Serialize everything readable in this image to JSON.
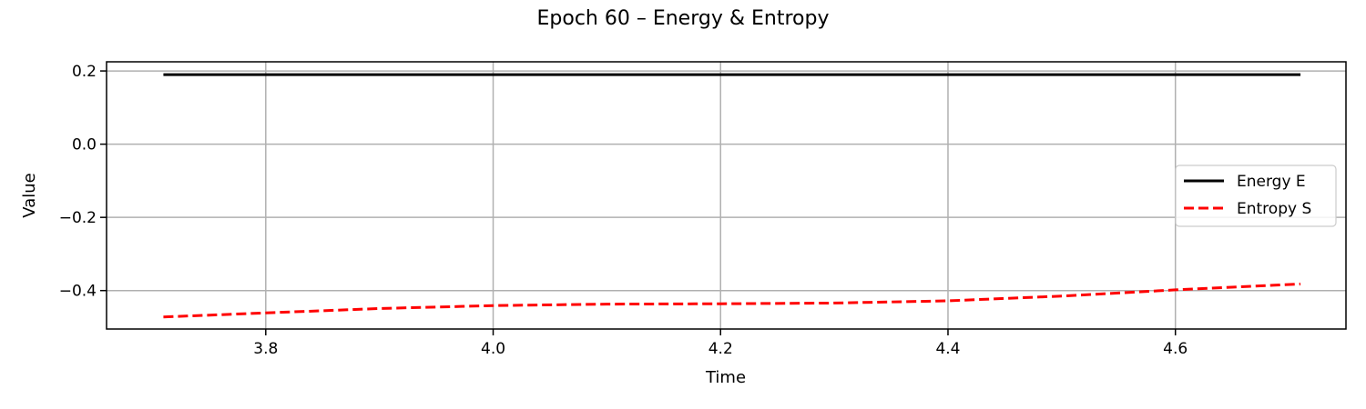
{
  "chart_data": {
    "type": "line",
    "title": "Epoch 60 – Energy & Entropy",
    "xlabel": "Time",
    "ylabel": "Value",
    "xlim": [
      3.66,
      4.75
    ],
    "ylim": [
      -0.505,
      0.225
    ],
    "xticks": [
      3.8,
      4.0,
      4.2,
      4.4,
      4.6
    ],
    "xtick_labels": [
      "3.8",
      "4.0",
      "4.2",
      "4.4",
      "4.6"
    ],
    "yticks": [
      0.2,
      0.0,
      -0.2,
      -0.4
    ],
    "ytick_labels": [
      "0.2",
      "0.0",
      "−0.2",
      "−0.4"
    ],
    "grid": true,
    "legend_position": "center-right",
    "series": [
      {
        "name": "Energy E",
        "color": "#000000",
        "style": "solid",
        "x": [
          3.71,
          4.71
        ],
        "y": [
          0.19,
          0.19
        ]
      },
      {
        "name": "Entropy S",
        "color": "#ff0000",
        "style": "dashed",
        "x": [
          3.71,
          3.8,
          3.9,
          4.0,
          4.1,
          4.2,
          4.3,
          4.4,
          4.5,
          4.6,
          4.71
        ],
        "y": [
          -0.472,
          -0.461,
          -0.449,
          -0.441,
          -0.437,
          -0.436,
          -0.434,
          -0.428,
          -0.415,
          -0.398,
          -0.382
        ]
      }
    ]
  }
}
